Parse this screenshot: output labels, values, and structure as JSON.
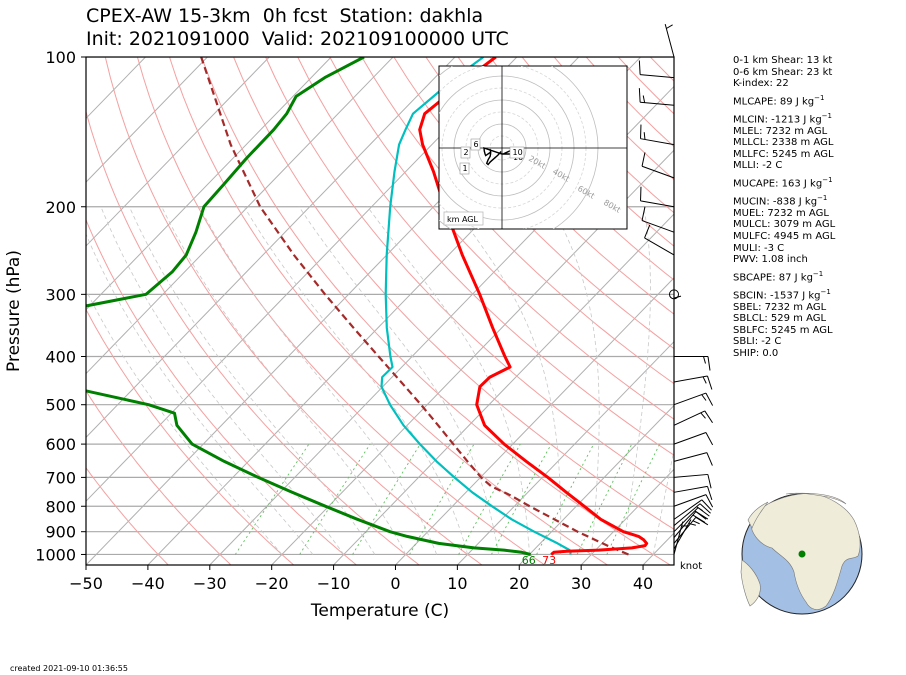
{
  "title_line1": "CPEX-AW 15-3km  0h fcst  Station: dakhla",
  "title_line2": "Init: 2021091000  Valid: 202109100000 UTC",
  "created": "created 2021-09-10 01:36:55",
  "indices": [
    {
      "text": "0-1 km Shear: 13 kt"
    },
    {
      "text": "0-6 km Shear: 23 kt"
    },
    {
      "text": "K-index: 22"
    },
    {
      "text": "MLCAPE: 89 J kg",
      "sup": "−1"
    },
    {
      "text": "MLCIN: -1213 J kg",
      "sup": "−1"
    },
    {
      "text": "MLEL: 7232 m AGL"
    },
    {
      "text": "MLLCL: 2338 m AGL"
    },
    {
      "text": "MLLFC: 5245 m AGL"
    },
    {
      "text": "MLLI: -2 C"
    },
    {
      "text": "MUCAPE: 163 J kg",
      "sup": "−1"
    },
    {
      "text": "MUCIN: -838 J kg",
      "sup": "−1"
    },
    {
      "text": "MUEL: 7232 m AGL"
    },
    {
      "text": "MULCL: 3079 m AGL"
    },
    {
      "text": "MULFC: 4945 m AGL"
    },
    {
      "text": "MULI: -3 C"
    },
    {
      "text": "PWV: 1.08 inch"
    },
    {
      "text": "SBCAPE: 87 J kg",
      "sup": "−1"
    },
    {
      "text": "SBCIN: -1537 J kg",
      "sup": "−1"
    },
    {
      "text": "SBEL: 7232 m AGL"
    },
    {
      "text": "SBLCL: 529 m AGL"
    },
    {
      "text": "SBLFC: 5245 m AGL"
    },
    {
      "text": "SBLI: -2 C"
    },
    {
      "text": "SHIP: 0.0"
    }
  ],
  "chart_data": {
    "type": "skew-t",
    "xlabel": "Temperature (C)",
    "ylabel": "Pressure (hPa)",
    "xlim": [
      -50,
      45
    ],
    "ylim": [
      1050,
      100
    ],
    "xticks": [
      -50,
      -40,
      -30,
      -20,
      -10,
      0,
      10,
      20,
      30,
      40
    ],
    "yticks": [
      1000,
      900,
      800,
      700,
      600,
      500,
      400,
      300,
      200,
      100
    ],
    "surface_dewpoint_label": "66",
    "surface_temperature_label": "73",
    "wind_unit_label": "knot",
    "colors": {
      "temperature": "#ff0000",
      "dewpoint": "#008000",
      "virtual_temperature": "#00bfbf",
      "parcel": "#a52a2a"
    },
    "temperature": [
      [
        1000,
        23.5
      ],
      [
        990,
        23.6
      ],
      [
        985,
        25.5
      ],
      [
        980,
        30.5
      ],
      [
        970,
        35.5
      ],
      [
        960,
        37.3
      ],
      [
        950,
        37.2
      ],
      [
        935,
        36.2
      ],
      [
        920,
        34.8
      ],
      [
        900,
        31.6
      ],
      [
        850,
        26.0
      ],
      [
        800,
        21.3
      ],
      [
        750,
        16.2
      ],
      [
        700,
        10.9
      ],
      [
        650,
        4.9
      ],
      [
        600,
        -1.4
      ],
      [
        550,
        -7.5
      ],
      [
        500,
        -12.0
      ],
      [
        460,
        -14.3
      ],
      [
        440,
        -14.2
      ],
      [
        420,
        -12.5
      ],
      [
        400,
        -15.0
      ],
      [
        350,
        -21.5
      ],
      [
        300,
        -28.8
      ],
      [
        250,
        -37.8
      ],
      [
        200,
        -48.2
      ],
      [
        170,
        -55.5
      ],
      [
        150,
        -61.5
      ],
      [
        140,
        -64.3
      ],
      [
        130,
        -66.0
      ],
      [
        120,
        -65.3
      ],
      [
        110,
        -64.6
      ],
      [
        100,
        -63.4
      ]
    ],
    "dewpoint": [
      [
        1000,
        20.2
      ],
      [
        990,
        18.4
      ],
      [
        980,
        15.2
      ],
      [
        970,
        10.0
      ],
      [
        950,
        3.6
      ],
      [
        920,
        -2.6
      ],
      [
        900,
        -6.1
      ],
      [
        850,
        -13.3
      ],
      [
        800,
        -20.5
      ],
      [
        750,
        -28.1
      ],
      [
        700,
        -35.9
      ],
      [
        650,
        -43.9
      ],
      [
        600,
        -51.8
      ],
      [
        550,
        -57.2
      ],
      [
        520,
        -59.5
      ],
      [
        500,
        -65.0
      ],
      [
        460,
        -81.0
      ],
      [
        420,
        -94.0
      ],
      [
        350,
        -96.0
      ],
      [
        330,
        -96.7
      ],
      [
        300,
        -82.7
      ],
      [
        270,
        -82.0
      ],
      [
        250,
        -82.4
      ],
      [
        225,
        -84.4
      ],
      [
        200,
        -87.1
      ],
      [
        180,
        -87.4
      ],
      [
        160,
        -87.8
      ],
      [
        140,
        -87.9
      ],
      [
        130,
        -88.3
      ],
      [
        120,
        -89.5
      ],
      [
        110,
        -87.8
      ],
      [
        100,
        -84.7
      ]
    ],
    "virtual_temperature": [
      [
        1000,
        26.6
      ],
      [
        990,
        26.3
      ],
      [
        980,
        25.8
      ],
      [
        970,
        24.8
      ],
      [
        950,
        22.8
      ],
      [
        900,
        17.2
      ],
      [
        850,
        11.6
      ],
      [
        800,
        6.4
      ],
      [
        750,
        1.0
      ],
      [
        700,
        -4.2
      ],
      [
        650,
        -9.6
      ],
      [
        600,
        -15.0
      ],
      [
        550,
        -20.6
      ],
      [
        500,
        -26.0
      ],
      [
        460,
        -30.2
      ],
      [
        440,
        -31.6
      ],
      [
        420,
        -31.5
      ],
      [
        400,
        -33.5
      ],
      [
        350,
        -38.6
      ],
      [
        300,
        -44.0
      ],
      [
        250,
        -50.0
      ],
      [
        200,
        -57.0
      ],
      [
        170,
        -61.8
      ],
      [
        150,
        -65.3
      ],
      [
        140,
        -66.6
      ],
      [
        130,
        -67.9
      ],
      [
        120,
        -67.3
      ],
      [
        110,
        -66.7
      ],
      [
        100,
        -65.4
      ]
    ],
    "parcel": [
      [
        1000,
        36.0
      ],
      [
        960,
        31.2
      ],
      [
        900,
        24.2
      ],
      [
        850,
        18.5
      ],
      [
        800,
        12.5
      ],
      [
        760,
        7.6
      ],
      [
        730,
        3.2
      ],
      [
        700,
        0.1
      ],
      [
        650,
        -4.6
      ],
      [
        600,
        -9.6
      ],
      [
        550,
        -15.0
      ],
      [
        500,
        -21.0
      ],
      [
        450,
        -27.8
      ],
      [
        400,
        -35.4
      ],
      [
        350,
        -44.0
      ],
      [
        300,
        -53.8
      ],
      [
        250,
        -65.0
      ],
      [
        200,
        -78.0
      ],
      [
        150,
        -92.5
      ],
      [
        100,
        -111.0
      ]
    ],
    "wind_barbs": [
      {
        "p": 1000,
        "kt": 3,
        "dir": 15
      },
      {
        "p": 975,
        "kt": 7,
        "dir": 30
      },
      {
        "p": 950,
        "kt": 15,
        "dir": 40
      },
      {
        "p": 925,
        "kt": 18,
        "dir": 40
      },
      {
        "p": 900,
        "kt": 18,
        "dir": 45
      },
      {
        "p": 875,
        "kt": 15,
        "dir": 50
      },
      {
        "p": 850,
        "kt": 12,
        "dir": 55
      },
      {
        "p": 800,
        "kt": 10,
        "dir": 70
      },
      {
        "p": 750,
        "kt": 10,
        "dir": 80
      },
      {
        "p": 700,
        "kt": 10,
        "dir": 85
      },
      {
        "p": 650,
        "kt": 10,
        "dir": 75
      },
      {
        "p": 600,
        "kt": 10,
        "dir": 70
      },
      {
        "p": 550,
        "kt": 15,
        "dir": 65
      },
      {
        "p": 500,
        "kt": 15,
        "dir": 70
      },
      {
        "p": 450,
        "kt": 15,
        "dir": 80
      },
      {
        "p": 400,
        "kt": 15,
        "dir": 90
      },
      {
        "p": 350,
        "kt": 5,
        "dir": 0
      },
      {
        "p": 300,
        "kt": 0,
        "dir": 0
      },
      {
        "p": 250,
        "kt": 10,
        "dir": 300
      },
      {
        "p": 225,
        "kt": 10,
        "dir": 290
      },
      {
        "p": 200,
        "kt": 10,
        "dir": 280
      },
      {
        "p": 175,
        "kt": 10,
        "dir": 290
      },
      {
        "p": 150,
        "kt": 15,
        "dir": 280
      },
      {
        "p": 125,
        "kt": 15,
        "dir": 275
      },
      {
        "p": 110,
        "kt": 10,
        "dir": 275
      },
      {
        "p": 100,
        "kt": 5,
        "dir": 345
      }
    ],
    "hodograph": {
      "ring_labels": [
        "10",
        "20kt",
        "40kt",
        "60kt",
        "80kt"
      ],
      "height_labels": [
        "1",
        "2",
        "6",
        "10"
      ],
      "legend": "km AGL"
    },
    "station_marker_color": "#008000"
  }
}
